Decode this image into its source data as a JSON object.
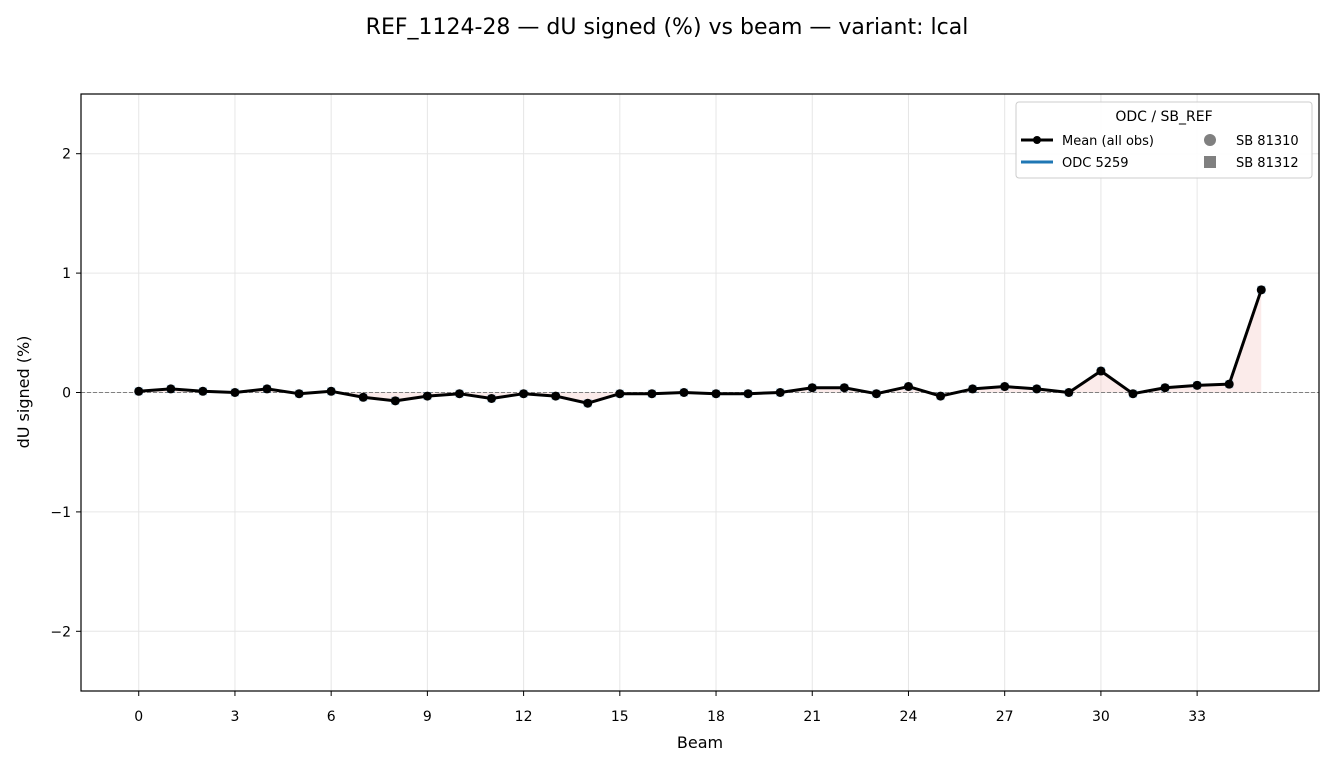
{
  "chart_data": {
    "type": "line",
    "title": "REF_1124-28  —  dU signed (%) vs beam  —  variant: lcal",
    "xlabel": "Beam",
    "ylabel": "dU signed (%)",
    "xlim": [
      -1.8,
      36.8
    ],
    "ylim": [
      -2.5,
      2.5
    ],
    "xticks": [
      0,
      3,
      6,
      9,
      12,
      15,
      18,
      21,
      24,
      27,
      30,
      33
    ],
    "yticks": [
      -2,
      -1,
      0,
      1,
      2
    ],
    "ytick_labels": [
      "−2",
      "−1",
      "0",
      "1",
      "2"
    ],
    "grid": true,
    "zero_line": 0,
    "legend": {
      "title": "ODC / SB_REF",
      "placement": "top-right",
      "entries": [
        "Mean (all obs)",
        "ODC 5259",
        "SB 81310",
        "SB 81312"
      ]
    },
    "colors": {
      "mean": "#000000",
      "odc": "#1f77b4",
      "sb_marker": "#808080",
      "fill": "#f4c7c3",
      "grid": "#e6e6e6",
      "zero_line": "#808080"
    },
    "series": [
      {
        "name": "Mean (all obs)",
        "x": [
          0,
          1,
          2,
          3,
          4,
          5,
          6,
          7,
          8,
          9,
          10,
          11,
          12,
          13,
          14,
          15,
          16,
          17,
          18,
          19,
          20,
          21,
          22,
          23,
          24,
          25,
          26,
          27,
          28,
          29,
          30,
          31,
          32,
          33,
          34,
          35
        ],
        "values": [
          0.01,
          0.03,
          0.01,
          0.0,
          0.03,
          -0.01,
          0.01,
          -0.04,
          -0.07,
          -0.03,
          -0.01,
          -0.05,
          -0.01,
          -0.03,
          -0.09,
          -0.01,
          -0.01,
          0.0,
          -0.01,
          -0.01,
          0.0,
          0.04,
          0.04,
          -0.01,
          0.05,
          -0.03,
          0.03,
          0.05,
          0.03,
          0.0,
          0.18,
          -0.01,
          0.04,
          0.06,
          0.07,
          0.86
        ]
      }
    ]
  }
}
